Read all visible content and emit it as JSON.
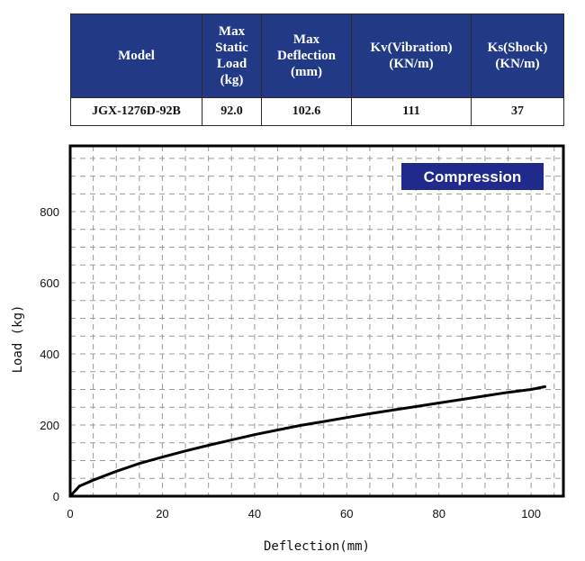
{
  "spec_table": {
    "headers": [
      "Model",
      "Max\nStatic\nLoad\n(kg)",
      "Max\nDeflection\n(mm)",
      "Kv(Vibration)\n(KN/m)",
      "Ks(Shock)\n(KN/m)"
    ],
    "row": [
      "JGX-1276D-92B",
      "92.0",
      "102.6",
      "111",
      "37"
    ]
  },
  "colors": {
    "header_bg": "#223a86",
    "legend_bg": "#1f2a8c",
    "curve": "#000000",
    "grid": "#9a9a9a"
  },
  "chart_data": {
    "type": "line",
    "xlabel": "Deflection(mm)",
    "ylabel": "Load (kg)",
    "xlim": [
      0,
      107
    ],
    "ylim": [
      0,
      985
    ],
    "xticks": [
      0,
      20,
      40,
      60,
      80,
      100
    ],
    "yticks": [
      0,
      200,
      400,
      600,
      800
    ],
    "grid": true,
    "legend": "top-right",
    "series": [
      {
        "name": "Compression",
        "x": [
          0,
          2,
          5,
          10,
          15,
          20,
          25,
          30,
          35,
          40,
          45,
          50,
          55,
          60,
          65,
          70,
          75,
          80,
          85,
          90,
          95,
          100,
          103
        ],
        "y": [
          0,
          28,
          45,
          70,
          92,
          110,
          127,
          143,
          158,
          173,
          186,
          199,
          210,
          221,
          232,
          242,
          252,
          262,
          272,
          282,
          292,
          300,
          308
        ]
      }
    ]
  }
}
